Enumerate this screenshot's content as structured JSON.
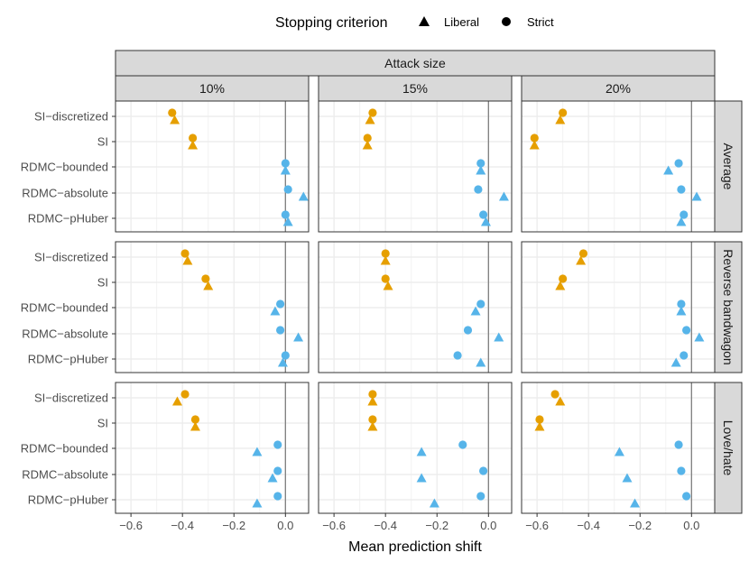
{
  "chart_data": {
    "type": "scatter",
    "title": "",
    "xlabel": "Mean prediction shift",
    "ylabel": "",
    "xlim": [
      -0.66,
      0.09
    ],
    "x_ticks": [
      -0.6,
      -0.4,
      -0.2,
      0.0
    ],
    "x_tick_labels": [
      "−0.6",
      "−0.4",
      "−0.2",
      "0.0"
    ],
    "vline": 0,
    "grid": true,
    "legend": {
      "title": "Stopping criterion",
      "position": "top",
      "entries": [
        {
          "name": "Liberal",
          "shape": "triangle"
        },
        {
          "name": "Strict",
          "shape": "circle"
        }
      ]
    },
    "column_group_label": "Attack size",
    "columns": [
      "10%",
      "15%",
      "20%"
    ],
    "rows": [
      "Average",
      "Reverse bandwagon",
      "Love/hate"
    ],
    "methods": [
      "SI−discretized",
      "SI",
      "RDMC−bounded",
      "RDMC−absolute",
      "RDMC−pHuber"
    ],
    "method_colors": {
      "SI": "#E69F00",
      "RDMC": "#56B4E9"
    },
    "method_family": [
      "SI",
      "SI",
      "RDMC",
      "RDMC",
      "RDMC"
    ],
    "panels": [
      {
        "row": "Average",
        "col": "10%",
        "strict": [
          -0.44,
          -0.36,
          0.0,
          0.01,
          0.0
        ],
        "liberal": [
          -0.43,
          -0.36,
          0.0,
          0.07,
          0.01
        ]
      },
      {
        "row": "Average",
        "col": "15%",
        "strict": [
          -0.45,
          -0.47,
          -0.03,
          -0.04,
          -0.02
        ],
        "liberal": [
          -0.46,
          -0.47,
          -0.03,
          0.06,
          -0.01
        ]
      },
      {
        "row": "Average",
        "col": "20%",
        "strict": [
          -0.5,
          -0.61,
          -0.05,
          -0.04,
          -0.03
        ],
        "liberal": [
          -0.51,
          -0.61,
          -0.09,
          0.02,
          -0.04
        ]
      },
      {
        "row": "Reverse bandwagon",
        "col": "10%",
        "strict": [
          -0.39,
          -0.31,
          -0.02,
          -0.02,
          0.0
        ],
        "liberal": [
          -0.38,
          -0.3,
          -0.04,
          0.05,
          -0.01
        ]
      },
      {
        "row": "Reverse bandwagon",
        "col": "15%",
        "strict": [
          -0.4,
          -0.4,
          -0.03,
          -0.08,
          -0.12
        ],
        "liberal": [
          -0.4,
          -0.39,
          -0.05,
          0.04,
          -0.03
        ]
      },
      {
        "row": "Reverse bandwagon",
        "col": "20%",
        "strict": [
          -0.42,
          -0.5,
          -0.04,
          -0.02,
          -0.03
        ],
        "liberal": [
          -0.43,
          -0.51,
          -0.04,
          0.03,
          -0.06
        ]
      },
      {
        "row": "Love/hate",
        "col": "10%",
        "strict": [
          -0.39,
          -0.35,
          -0.03,
          -0.03,
          -0.03
        ],
        "liberal": [
          -0.42,
          -0.35,
          -0.11,
          -0.05,
          -0.11
        ]
      },
      {
        "row": "Love/hate",
        "col": "15%",
        "strict": [
          -0.45,
          -0.45,
          -0.1,
          -0.02,
          -0.03
        ],
        "liberal": [
          -0.45,
          -0.45,
          -0.26,
          -0.26,
          -0.21
        ]
      },
      {
        "row": "Love/hate",
        "col": "20%",
        "strict": [
          -0.53,
          -0.59,
          -0.05,
          -0.04,
          -0.02
        ],
        "liberal": [
          -0.51,
          -0.59,
          -0.28,
          -0.25,
          -0.22
        ]
      }
    ]
  }
}
